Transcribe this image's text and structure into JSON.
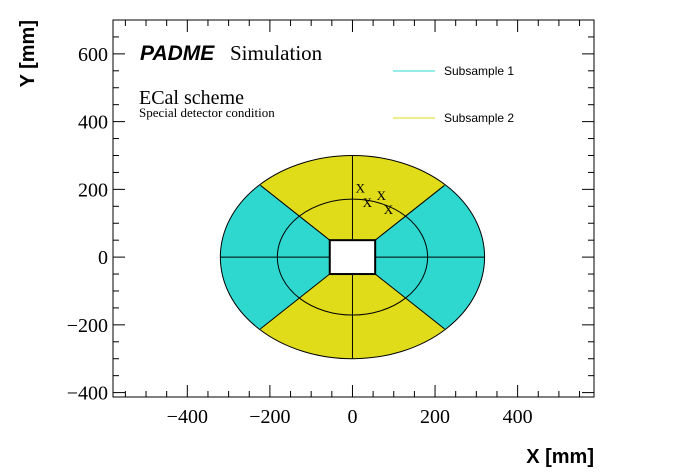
{
  "chart_data": {
    "type": "diagram",
    "title": "ECal scheme",
    "subtitle": "Special detector condition",
    "label_bold": "PADME",
    "label_normal": "Simulation",
    "xlabel": "X [mm]",
    "ylabel": "Y [mm]",
    "xlim": [
      -580,
      585
    ],
    "ylim": [
      -413,
      700
    ],
    "xticks": [
      -400,
      -200,
      0,
      200,
      400
    ],
    "yticks": [
      -400,
      -200,
      0,
      200,
      400,
      600
    ],
    "legend": [
      {
        "label": "Subsample 1",
        "color": "#2ed8cf"
      },
      {
        "label": "Subsample 2",
        "color": "#e0dc1a"
      }
    ],
    "geometry": {
      "outer_radius_x": 320,
      "outer_radius_y": 300,
      "inner_radius_x": 182,
      "inner_radius_y": 171,
      "hole_half_x": 55,
      "hole_half_y": 50,
      "diagonal_end": [
        223,
        212
      ]
    },
    "markers": {
      "symbol": "X",
      "points": [
        [
          19,
          203
        ],
        [
          36,
          159
        ],
        [
          70,
          180
        ],
        [
          87,
          139
        ]
      ]
    }
  }
}
